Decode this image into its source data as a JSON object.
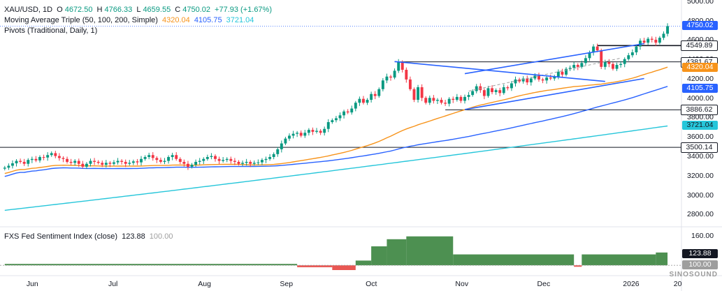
{
  "legend": {
    "symbol": "XAU/USD, 1D",
    "o_label": "O",
    "o": "4672.50",
    "h_label": "H",
    "h": "4766.33",
    "l_label": "L",
    "l": "4659.55",
    "c_label": "C",
    "c": "4750.02",
    "chg": "+77.93 (+1.67%)",
    "ma_name": "Moving Average Triple (50, 100, 200, Simple)",
    "ma50": "4320.04",
    "ma100": "4105.75",
    "ma200": "3721.04",
    "pivots": "Pivots (Traditional, Daily, 1)"
  },
  "indicator": {
    "name": "FXS Fed Sentiment Index (close)",
    "value": "123.88",
    "ref": "100.00"
  },
  "watermark": "SINOSOUND",
  "price_labels": [
    {
      "text": "4750.02",
      "value": 4750.02,
      "bg": "#2962ff",
      "fg": "#ffffff"
    },
    {
      "text": "4549.89",
      "value": 4549.89,
      "bg": "#ffffff",
      "fg": "#131722",
      "border": "#131722"
    },
    {
      "text": "4381.67",
      "value": 4381.67,
      "bg": "#ffffff",
      "fg": "#131722",
      "border": "#131722"
    },
    {
      "text": "4320.04",
      "value": 4320.04,
      "bg": "#f7931a",
      "fg": "#ffffff"
    },
    {
      "text": "4105.75",
      "value": 4105.75,
      "bg": "#2962ff",
      "fg": "#ffffff"
    },
    {
      "text": "3886.62",
      "value": 3886.62,
      "bg": "#ffffff",
      "fg": "#131722",
      "border": "#131722"
    },
    {
      "text": "3721.04",
      "value": 3721.04,
      "bg": "#26c6da",
      "fg": "#131722"
    },
    {
      "text": "3500.14",
      "value": 3500.14,
      "bg": "#ffffff",
      "fg": "#131722",
      "border": "#131722"
    }
  ],
  "indicator_labels": [
    {
      "text": "123.88",
      "value": 123.88,
      "bg": "#131722",
      "fg": "#ffffff"
    },
    {
      "text": "100.00",
      "value": 100,
      "bg": "#9e9e9e",
      "fg": "#ffffff"
    }
  ],
  "colors": {
    "up": "#089981",
    "down": "#f23645",
    "ma50": "#f7931a",
    "ma100": "#2962ff",
    "ma200": "#26c6da",
    "channel": "#2962ff",
    "pivot": "#131722",
    "sent_up": "#2e7d32",
    "sent_down": "#e53935"
  },
  "chart_data": {
    "type": "candlestick",
    "symbol": "XAU/USD",
    "timeframe": "1D",
    "y_ticks": [
      2800,
      3000,
      3200,
      3400,
      3600,
      3800,
      4000,
      4200,
      4400,
      4600,
      4800,
      5000
    ],
    "y_tick_labels": [
      "2800.00",
      "3000.00",
      "3200.00",
      "3400.00",
      "3600.00",
      "3800.00",
      "4000.00",
      "4200.00",
      "4400.00",
      "4600.00",
      "4800.00",
      "5000.00"
    ],
    "ylim": [
      2680,
      5020
    ],
    "x_ticks": [
      {
        "label": "Jun",
        "bar": 7
      },
      {
        "label": "Jul",
        "bar": 28
      },
      {
        "label": "Aug",
        "bar": 51
      },
      {
        "label": "Sep",
        "bar": 72
      },
      {
        "label": "Oct",
        "bar": 94
      },
      {
        "label": "Nov",
        "bar": 117
      },
      {
        "label": "Dec",
        "bar": 138
      },
      {
        "label": "2026",
        "bar": 160
      },
      {
        "label": "20",
        "bar": 173
      }
    ],
    "closes": [
      3290,
      3310,
      3335,
      3360,
      3350,
      3330,
      3370,
      3380,
      3365,
      3400,
      3395,
      3420,
      3440,
      3410,
      3390,
      3380,
      3350,
      3340,
      3360,
      3330,
      3300,
      3330,
      3360,
      3350,
      3340,
      3320,
      3340,
      3330,
      3345,
      3360,
      3350,
      3330,
      3340,
      3355,
      3345,
      3380,
      3400,
      3420,
      3390,
      3370,
      3350,
      3360,
      3400,
      3420,
      3380,
      3350,
      3330,
      3300,
      3320,
      3350,
      3360,
      3380,
      3400,
      3410,
      3380,
      3360,
      3370,
      3380,
      3360,
      3350,
      3330,
      3340,
      3350,
      3330,
      3340,
      3345,
      3370,
      3380,
      3400,
      3430,
      3480,
      3540,
      3590,
      3620,
      3640,
      3650,
      3620,
      3650,
      3680,
      3660,
      3670,
      3650,
      3690,
      3760,
      3780,
      3800,
      3830,
      3870,
      3860,
      3900,
      3960,
      4000,
      3960,
      3990,
      4050,
      4030,
      4100,
      4190,
      4230,
      4220,
      4290,
      4380,
      4300,
      4200,
      4100,
      3990,
      4120,
      4010,
      3960,
      4010,
      3980,
      3990,
      3960,
      3950,
      4000,
      3990,
      4020,
      3980,
      4020,
      4040,
      4080,
      4130,
      4090,
      4030,
      4110,
      4070,
      4090,
      4060,
      4120,
      4110,
      4160,
      4200,
      4180,
      4210,
      4170,
      4210,
      4240,
      4200,
      4190,
      4220,
      4210,
      4230,
      4280,
      4250,
      4310,
      4320,
      4350,
      4330,
      4370,
      4420,
      4480,
      4540,
      4500,
      4330,
      4380,
      4360,
      4310,
      4350,
      4360,
      4410,
      4450,
      4480,
      4540,
      4600,
      4580,
      4620,
      4610,
      4580,
      4630,
      4672,
      4750
    ],
    "sma_values": {
      "ma50": 4320.04,
      "ma100": 4105.75,
      "ma200": 3721.04
    },
    "pivot_levels": [
      4549.89,
      4381.67,
      3886.62,
      3500.14
    ],
    "channel": {
      "upper_start": [
        118,
        4260
      ],
      "upper_end": [
        164,
        4570
      ],
      "lower_start": [
        118,
        3890
      ],
      "lower_end": [
        164,
        4210
      ]
    },
    "wedge": {
      "top_start": [
        100,
        4385
      ],
      "top_end": [
        154,
        4180
      ],
      "bottom_start": [
        100,
        4385
      ],
      "bottom_end": [
        100,
        4385
      ]
    },
    "indicator": {
      "name": "FXS Fed Sentiment Index (close)",
      "y_ticks": [
        100,
        160
      ],
      "baseline": 100,
      "segments": [
        {
          "from": 0,
          "to": 75,
          "value": 103
        },
        {
          "from": 75,
          "to": 84,
          "value": 96
        },
        {
          "from": 84,
          "to": 90,
          "value": 90
        },
        {
          "from": 90,
          "to": 94,
          "value": 110
        },
        {
          "from": 94,
          "to": 98,
          "value": 140
        },
        {
          "from": 98,
          "to": 103,
          "value": 155
        },
        {
          "from": 103,
          "to": 115,
          "value": 161
        },
        {
          "from": 115,
          "to": 146,
          "value": 123
        },
        {
          "from": 146,
          "to": 148,
          "value": 97
        },
        {
          "from": 148,
          "to": 167,
          "value": 123
        },
        {
          "from": 167,
          "to": 175,
          "value": 127
        }
      ]
    }
  }
}
